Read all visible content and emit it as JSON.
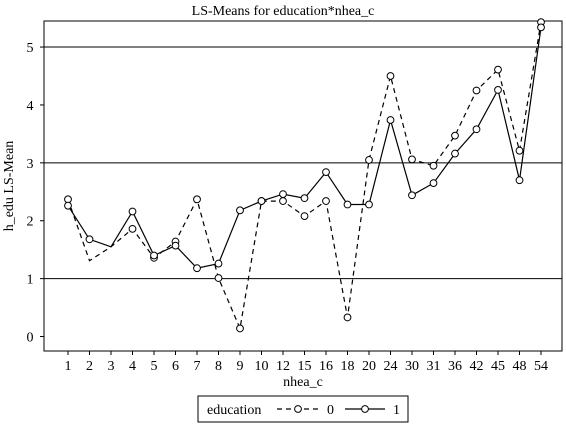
{
  "chart_data": {
    "type": "line",
    "title": "LS-Means for education*nhea_c",
    "xlabel": "nhea_c",
    "ylabel": "h_edu LS-Mean",
    "categories": [
      "1",
      "2",
      "3",
      "4",
      "5",
      "6",
      "7",
      "8",
      "9",
      "10",
      "12",
      "15",
      "16",
      "18",
      "20",
      "24",
      "30",
      "31",
      "36",
      "42",
      "45",
      "48",
      "54"
    ],
    "ylim": [
      -0.25,
      5.45
    ],
    "yticks": [
      0,
      1,
      2,
      3,
      4,
      5
    ],
    "reference_lines_y": [
      1,
      3,
      5
    ],
    "legend": {
      "title": "education",
      "position": "bottom",
      "entries": [
        "0",
        "1"
      ]
    },
    "series": [
      {
        "name": "0",
        "line_style": "dashed",
        "marker": "circle",
        "values": [
          2.37,
          1.31,
          1.55,
          1.86,
          1.36,
          1.64,
          2.37,
          1.01,
          0.14,
          2.34,
          2.34,
          2.08,
          2.34,
          0.33,
          3.05,
          4.5,
          3.06,
          2.95,
          3.47,
          4.25,
          4.61,
          3.21,
          5.43
        ],
        "marked": [
          true,
          false,
          false,
          true,
          true,
          true,
          true,
          true,
          true,
          true,
          true,
          true,
          true,
          true,
          true,
          true,
          true,
          true,
          true,
          true,
          true,
          true,
          true
        ]
      },
      {
        "name": "1",
        "line_style": "solid",
        "marker": "circle",
        "values": [
          2.26,
          1.68,
          1.55,
          2.16,
          1.4,
          1.57,
          1.18,
          1.26,
          2.18,
          2.34,
          2.46,
          2.39,
          2.84,
          2.28,
          2.28,
          3.74,
          2.44,
          2.65,
          3.16,
          3.58,
          4.26,
          2.7,
          5.34
        ],
        "marked": [
          true,
          true,
          false,
          true,
          true,
          true,
          true,
          true,
          true,
          true,
          true,
          true,
          true,
          true,
          true,
          true,
          true,
          true,
          true,
          true,
          true,
          true,
          true
        ]
      }
    ]
  }
}
